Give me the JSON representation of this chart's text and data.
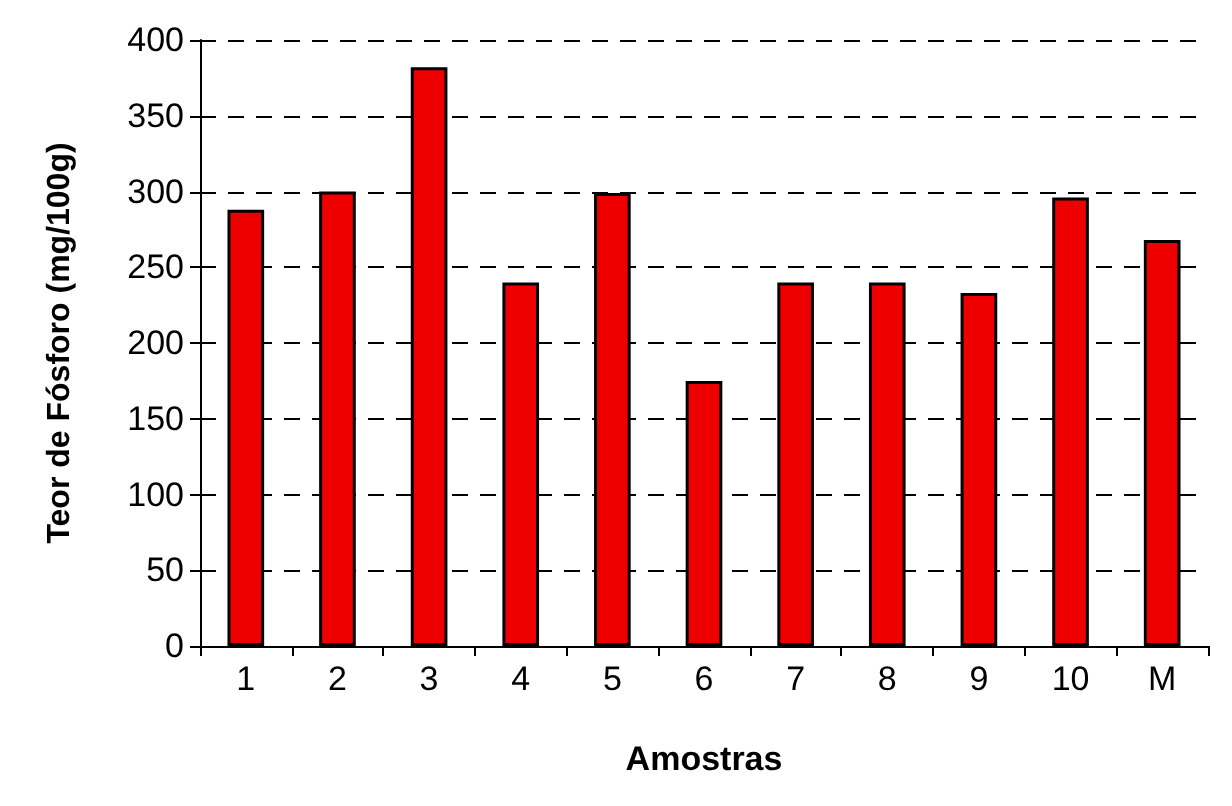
{
  "chart_data": {
    "type": "bar",
    "xlabel": "Amostras",
    "ylabel": "Teor de Fósforo (mg/100g)",
    "categories": [
      "1",
      "2",
      "3",
      "4",
      "5",
      "6",
      "7",
      "8",
      "9",
      "10",
      "M"
    ],
    "values": [
      288,
      300,
      382,
      240,
      299,
      175,
      240,
      240,
      233,
      296,
      268
    ],
    "color": "#ee0000",
    "ylim": [
      0,
      400
    ],
    "yticks": [
      0,
      50,
      100,
      150,
      200,
      250,
      300,
      350,
      400
    ],
    "grid": "y"
  }
}
